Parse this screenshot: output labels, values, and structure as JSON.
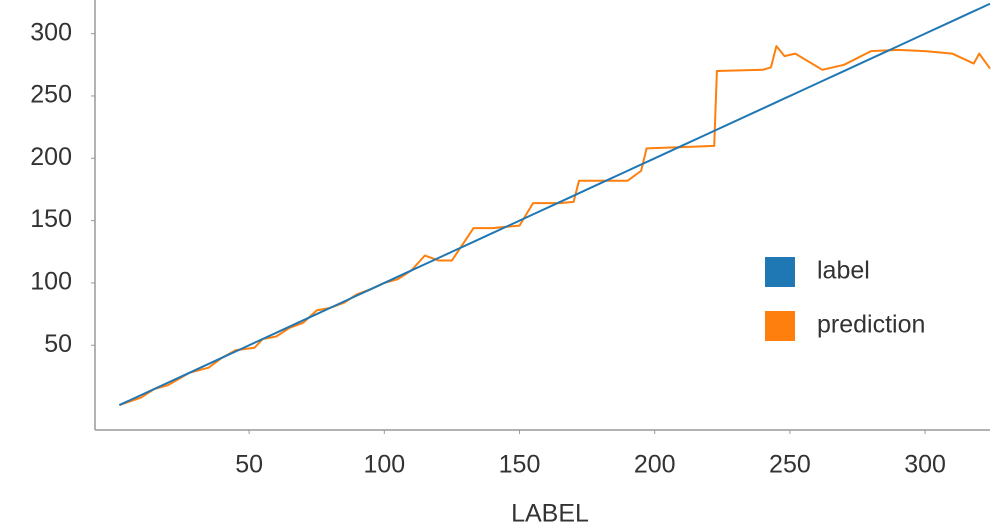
{
  "chart_data": {
    "type": "line",
    "x_label": "LABEL",
    "x": [
      2,
      10,
      15,
      20,
      28,
      35,
      40,
      45,
      52,
      55,
      60,
      65,
      70,
      75,
      80,
      85,
      90,
      95,
      100,
      105,
      110,
      115,
      120,
      125,
      133,
      140,
      150,
      155,
      165,
      170,
      172,
      180,
      190,
      195,
      197,
      210,
      222,
      223,
      240,
      243,
      245,
      248,
      252,
      262,
      270,
      280,
      290,
      300,
      310,
      318,
      320,
      324
    ],
    "series": [
      {
        "name": "label",
        "color": "#1f77b4",
        "values": [
          2,
          10,
          15,
          20,
          28,
          35,
          40,
          45,
          52,
          55,
          60,
          65,
          70,
          75,
          80,
          85,
          90,
          95,
          100,
          105,
          110,
          115,
          120,
          125,
          133,
          140,
          150,
          155,
          165,
          170,
          172,
          180,
          190,
          195,
          197,
          210,
          222,
          223,
          240,
          243,
          245,
          248,
          252,
          262,
          270,
          280,
          290,
          300,
          310,
          318,
          320,
          324
        ]
      },
      {
        "name": "prediction",
        "color": "#ff7f0e",
        "values": [
          2,
          8,
          15,
          18,
          28,
          32,
          40,
          46,
          48,
          55,
          57,
          64,
          68,
          78,
          80,
          84,
          91,
          95,
          100,
          103,
          110,
          122,
          118,
          118,
          144,
          144,
          146,
          164,
          164,
          165,
          182,
          182,
          182,
          190,
          208,
          209,
          210,
          270,
          271,
          273,
          290,
          282,
          284,
          271,
          275,
          286,
          287,
          286,
          284,
          276,
          284,
          272
        ]
      }
    ],
    "xlim": [
      -7,
      324
    ],
    "xticks": [
      50,
      100,
      150,
      200,
      250,
      300
    ],
    "ylim": [
      -18,
      327
    ],
    "yticks": [
      50,
      100,
      150,
      200,
      250,
      300
    ],
    "legend": "right"
  }
}
